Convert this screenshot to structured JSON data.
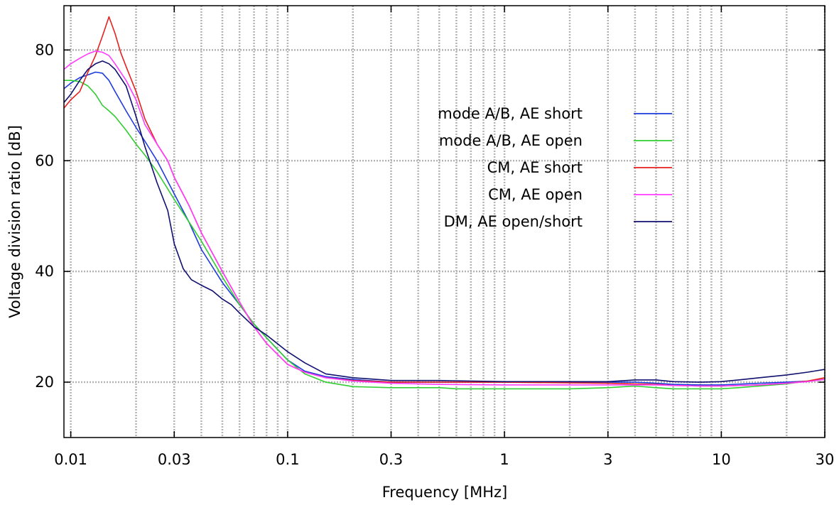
{
  "chart_data": {
    "type": "line",
    "title": "",
    "xlabel": "Frequency [MHz]",
    "ylabel": "Voltage division ratio [dB]",
    "xscale": "log",
    "xlim": [
      0.0093,
      30
    ],
    "ylim": [
      10,
      88
    ],
    "grid": true,
    "legend_position": "top-center",
    "x_ticks": [
      {
        "value": 0.01,
        "label": "0.01"
      },
      {
        "value": 0.03,
        "label": "0.03"
      },
      {
        "value": 0.1,
        "label": "0.1"
      },
      {
        "value": 0.3,
        "label": "0.3"
      },
      {
        "value": 1,
        "label": "1"
      },
      {
        "value": 3,
        "label": "3"
      },
      {
        "value": 10,
        "label": "10"
      },
      {
        "value": 30,
        "label": "30"
      }
    ],
    "y_ticks": [
      {
        "value": 20,
        "label": "20"
      },
      {
        "value": 40,
        "label": "40"
      },
      {
        "value": 60,
        "label": "60"
      },
      {
        "value": 80,
        "label": "80"
      }
    ],
    "series": [
      {
        "name": "mode A/B, AE short",
        "color": "#1e3cdc",
        "points": [
          [
            0.0093,
            73
          ],
          [
            0.01,
            74
          ],
          [
            0.011,
            75
          ],
          [
            0.012,
            75.5
          ],
          [
            0.013,
            76
          ],
          [
            0.014,
            75.8
          ],
          [
            0.015,
            74.5
          ],
          [
            0.016,
            72.5
          ],
          [
            0.018,
            69
          ],
          [
            0.02,
            66
          ],
          [
            0.022,
            63.5
          ],
          [
            0.025,
            60
          ],
          [
            0.03,
            54
          ],
          [
            0.035,
            49
          ],
          [
            0.04,
            44
          ],
          [
            0.05,
            38
          ],
          [
            0.06,
            34
          ],
          [
            0.07,
            30.5
          ],
          [
            0.08,
            28
          ],
          [
            0.1,
            24
          ],
          [
            0.12,
            22
          ],
          [
            0.15,
            21
          ],
          [
            0.2,
            20.5
          ],
          [
            0.3,
            20
          ],
          [
            0.5,
            20
          ],
          [
            1,
            20
          ],
          [
            2,
            20
          ],
          [
            3,
            20
          ],
          [
            4,
            20
          ],
          [
            5,
            19.8
          ],
          [
            6,
            19.6
          ],
          [
            8,
            19.5
          ],
          [
            10,
            19.5
          ],
          [
            15,
            19.8
          ],
          [
            20,
            20
          ],
          [
            25,
            20.2
          ],
          [
            30,
            20.5
          ]
        ]
      },
      {
        "name": "mode A/B, AE open",
        "color": "#32cd32",
        "points": [
          [
            0.0093,
            74.5
          ],
          [
            0.01,
            74.5
          ],
          [
            0.011,
            74.3
          ],
          [
            0.012,
            73.5
          ],
          [
            0.013,
            72
          ],
          [
            0.014,
            70
          ],
          [
            0.015,
            69
          ],
          [
            0.016,
            68
          ],
          [
            0.018,
            65.5
          ],
          [
            0.02,
            63
          ],
          [
            0.022,
            61
          ],
          [
            0.025,
            58
          ],
          [
            0.03,
            53
          ],
          [
            0.035,
            49
          ],
          [
            0.04,
            45.5
          ],
          [
            0.05,
            39
          ],
          [
            0.06,
            34
          ],
          [
            0.07,
            30.5
          ],
          [
            0.08,
            28
          ],
          [
            0.1,
            24
          ],
          [
            0.12,
            21.5
          ],
          [
            0.15,
            20
          ],
          [
            0.2,
            19.2
          ],
          [
            0.3,
            19
          ],
          [
            0.5,
            19
          ],
          [
            0.6,
            18.8
          ],
          [
            1,
            18.8
          ],
          [
            2,
            18.8
          ],
          [
            3,
            19
          ],
          [
            4,
            19.3
          ],
          [
            5,
            19
          ],
          [
            6,
            18.8
          ],
          [
            8,
            18.8
          ],
          [
            10,
            18.8
          ],
          [
            12,
            19
          ],
          [
            15,
            19.3
          ],
          [
            20,
            19.7
          ],
          [
            25,
            20.2
          ],
          [
            30,
            20.5
          ]
        ]
      },
      {
        "name": "CM, AE short",
        "color": "#e62020",
        "points": [
          [
            0.0093,
            69.5
          ],
          [
            0.01,
            71
          ],
          [
            0.011,
            72.5
          ],
          [
            0.012,
            76
          ],
          [
            0.013,
            79
          ],
          [
            0.014,
            82.5
          ],
          [
            0.015,
            86
          ],
          [
            0.016,
            83
          ],
          [
            0.017,
            79.5
          ],
          [
            0.018,
            77
          ],
          [
            0.02,
            72.5
          ],
          [
            0.022,
            67.5
          ],
          [
            0.025,
            63
          ],
          [
            0.028,
            60
          ],
          [
            0.03,
            57
          ],
          [
            0.035,
            52
          ],
          [
            0.04,
            47
          ],
          [
            0.05,
            40
          ],
          [
            0.06,
            34.5
          ],
          [
            0.07,
            30
          ],
          [
            0.08,
            27
          ],
          [
            0.1,
            23.2
          ],
          [
            0.12,
            21.8
          ],
          [
            0.15,
            20.8
          ],
          [
            0.2,
            20.3
          ],
          [
            0.3,
            20
          ],
          [
            0.5,
            20
          ],
          [
            1,
            20
          ],
          [
            3,
            19.8
          ],
          [
            5,
            19.6
          ],
          [
            6,
            19.4
          ],
          [
            8,
            19.3
          ],
          [
            10,
            19.3
          ],
          [
            15,
            19.5
          ],
          [
            20,
            19.8
          ],
          [
            25,
            20.2
          ],
          [
            30,
            20.8
          ]
        ]
      },
      {
        "name": "CM, AE open",
        "color": "#ff3cff",
        "points": [
          [
            0.0093,
            76.5
          ],
          [
            0.01,
            77.5
          ],
          [
            0.011,
            78.5
          ],
          [
            0.012,
            79.3
          ],
          [
            0.013,
            79.8
          ],
          [
            0.014,
            79.6
          ],
          [
            0.015,
            79
          ],
          [
            0.016,
            77.5
          ],
          [
            0.018,
            74.5
          ],
          [
            0.02,
            71
          ],
          [
            0.022,
            66.5
          ],
          [
            0.025,
            63
          ],
          [
            0.028,
            60
          ],
          [
            0.03,
            57
          ],
          [
            0.035,
            52
          ],
          [
            0.04,
            47
          ],
          [
            0.05,
            40
          ],
          [
            0.06,
            34.5
          ],
          [
            0.07,
            30
          ],
          [
            0.08,
            27
          ],
          [
            0.1,
            23.2
          ],
          [
            0.12,
            21.8
          ],
          [
            0.15,
            20.8
          ],
          [
            0.2,
            20.2
          ],
          [
            0.3,
            19.8
          ],
          [
            0.5,
            19.6
          ],
          [
            1,
            19.5
          ],
          [
            3,
            19.5
          ],
          [
            5,
            19.5
          ],
          [
            6,
            19.4
          ],
          [
            8,
            19.3
          ],
          [
            10,
            19.3
          ],
          [
            15,
            19.5
          ],
          [
            20,
            19.8
          ],
          [
            25,
            20.1
          ],
          [
            30,
            20.5
          ]
        ]
      },
      {
        "name": "DM, AE open/short",
        "color": "#101070",
        "points": [
          [
            0.0093,
            70.5
          ],
          [
            0.01,
            72
          ],
          [
            0.011,
            74.5
          ],
          [
            0.012,
            76.5
          ],
          [
            0.013,
            77.5
          ],
          [
            0.014,
            78
          ],
          [
            0.015,
            77.5
          ],
          [
            0.016,
            76.5
          ],
          [
            0.018,
            73.5
          ],
          [
            0.02,
            68
          ],
          [
            0.022,
            62.5
          ],
          [
            0.025,
            56
          ],
          [
            0.028,
            51
          ],
          [
            0.03,
            45
          ],
          [
            0.033,
            40.5
          ],
          [
            0.036,
            38.5
          ],
          [
            0.04,
            37.5
          ],
          [
            0.045,
            36.5
          ],
          [
            0.05,
            35
          ],
          [
            0.055,
            34
          ],
          [
            0.06,
            32.5
          ],
          [
            0.07,
            30
          ],
          [
            0.08,
            28.5
          ],
          [
            0.1,
            25.5
          ],
          [
            0.12,
            23.5
          ],
          [
            0.15,
            21.5
          ],
          [
            0.2,
            20.8
          ],
          [
            0.3,
            20.3
          ],
          [
            0.5,
            20.3
          ],
          [
            1,
            20.1
          ],
          [
            2,
            20.1
          ],
          [
            3,
            20.1
          ],
          [
            4,
            20.4
          ],
          [
            5,
            20.4
          ],
          [
            6,
            20.1
          ],
          [
            8,
            20
          ],
          [
            10,
            20.1
          ],
          [
            12,
            20.4
          ],
          [
            15,
            20.8
          ],
          [
            20,
            21.3
          ],
          [
            25,
            21.8
          ],
          [
            30,
            22.3
          ]
        ]
      }
    ]
  }
}
